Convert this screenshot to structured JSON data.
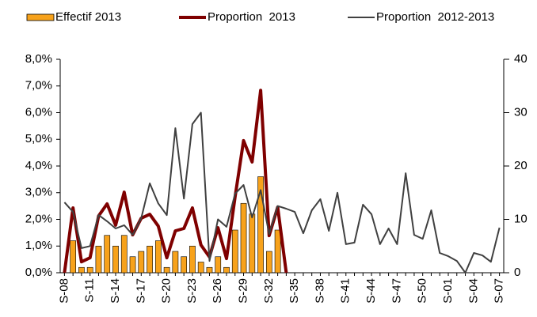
{
  "chart_data": {
    "type": "bar-line",
    "legend": "top",
    "categories": [
      "S-08",
      null,
      null,
      "S-11",
      null,
      null,
      "S-14",
      null,
      null,
      "S-17",
      null,
      null,
      "S-20",
      null,
      null,
      "S-23",
      null,
      null,
      "S-26",
      null,
      null,
      "S-29",
      null,
      null,
      "S-32",
      null,
      null,
      "S-35",
      null,
      null,
      "S-38",
      null,
      null,
      "S-41",
      null,
      null,
      "S-44",
      null,
      null,
      "S-47",
      null,
      null,
      "S-50",
      null,
      null,
      "S-01",
      null,
      null,
      "S-04",
      null,
      null,
      "S-07"
    ],
    "series": [
      {
        "name": "Effectif 2013",
        "type": "bar",
        "axis": "y2",
        "color": "#f7a21b",
        "values": [
          0,
          6,
          1,
          1,
          5,
          7,
          5,
          7,
          3,
          4,
          5,
          6,
          1,
          4,
          3,
          5,
          2,
          1,
          3,
          1,
          8,
          13,
          11,
          18,
          4,
          8,
          0,
          null,
          null,
          null,
          null,
          null,
          null,
          null,
          null,
          null,
          null,
          null,
          null,
          null,
          null,
          null,
          null,
          null,
          null,
          null,
          null,
          null,
          null,
          null,
          null,
          null
        ]
      },
      {
        "name": "Proportion  2013",
        "type": "line",
        "color": "#7f0000",
        "values": [
          0,
          2.43,
          0.41,
          0.56,
          2.13,
          2.58,
          1.78,
          3.02,
          1.42,
          2.04,
          2.19,
          1.75,
          0.56,
          1.57,
          1.66,
          2.43,
          1.04,
          0.59,
          1.69,
          0.53,
          2.84,
          4.95,
          4.15,
          6.84,
          1.39,
          2.46,
          0,
          null,
          null,
          null,
          null,
          null,
          null,
          null,
          null,
          null,
          null,
          null,
          null,
          null,
          null,
          null,
          null,
          null,
          null,
          null,
          null,
          null,
          null,
          null,
          null,
          null
        ]
      },
      {
        "name": "Proportion  2012-2013",
        "type": "line",
        "color": "#404040",
        "values": [
          2.64,
          2.28,
          0.92,
          1.0,
          2.16,
          1.93,
          1.66,
          1.78,
          1.42,
          2.04,
          3.35,
          2.6,
          2.16,
          5.42,
          2.78,
          5.57,
          6.0,
          0.44,
          2.0,
          1.72,
          2.96,
          3.29,
          2.07,
          3.1,
          1.45,
          2.5,
          2.4,
          2.28,
          1.48,
          2.34,
          2.76,
          1.57,
          3.0,
          1.07,
          1.13,
          2.55,
          2.19,
          1.07,
          1.66,
          1.07,
          3.73,
          1.42,
          1.27,
          2.34,
          0.74,
          0.62,
          0.44,
          0,
          0.74,
          0.65,
          0.41,
          1.69
        ]
      }
    ],
    "ylim": [
      0,
      8
    ],
    "yticks": [
      {
        "value": 0,
        "label": "0,0%"
      },
      {
        "value": 1,
        "label": "1,0%"
      },
      {
        "value": 2,
        "label": "2,0%"
      },
      {
        "value": 3,
        "label": "3,0%"
      },
      {
        "value": 4,
        "label": "4,0%"
      },
      {
        "value": 5,
        "label": "5,0%"
      },
      {
        "value": 6,
        "label": "6,0%"
      },
      {
        "value": 7,
        "label": "7,0%"
      },
      {
        "value": 8,
        "label": "8,0%"
      }
    ],
    "y2lim": [
      0,
      40
    ],
    "y2ticks": [
      0,
      10,
      20,
      30,
      40
    ]
  }
}
